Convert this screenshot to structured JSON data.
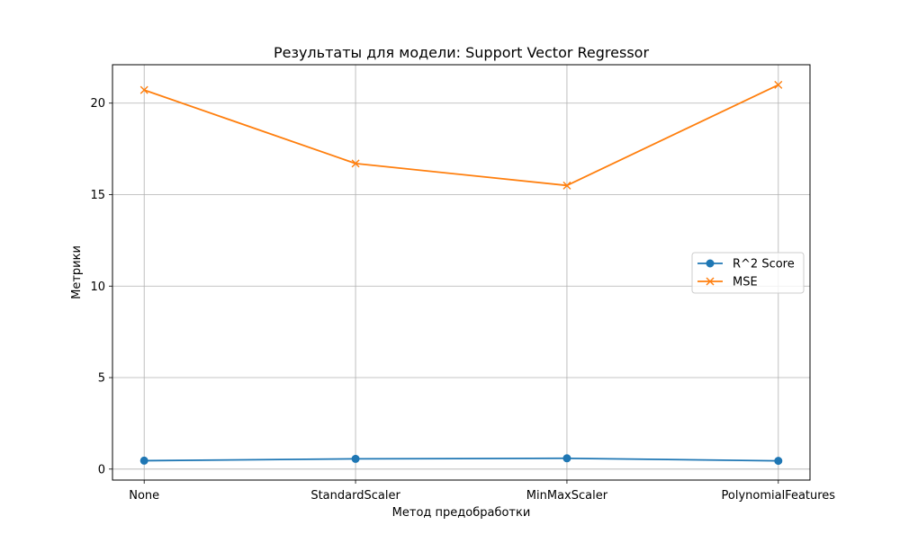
{
  "chart_data": {
    "type": "line",
    "title": "Результаты для модели: Support Vector Regressor",
    "xlabel": "Метод предобработки",
    "ylabel": "Метрики",
    "categories": [
      "None",
      "StandardScaler",
      "MinMaxScaler",
      "PolynomialFeatures"
    ],
    "y_ticks": [
      0,
      5,
      10,
      15,
      20
    ],
    "ylim": [
      -0.6,
      22.1
    ],
    "grid": true,
    "legend_position": "center-right",
    "series": [
      {
        "name": "R^2 Score",
        "values": [
          0.46,
          0.56,
          0.59,
          0.45
        ],
        "color": "#1f77b4",
        "marker": "circle"
      },
      {
        "name": "MSE",
        "values": [
          20.72,
          16.7,
          15.5,
          21.0
        ],
        "color": "#ff7f0e",
        "marker": "x"
      }
    ]
  }
}
